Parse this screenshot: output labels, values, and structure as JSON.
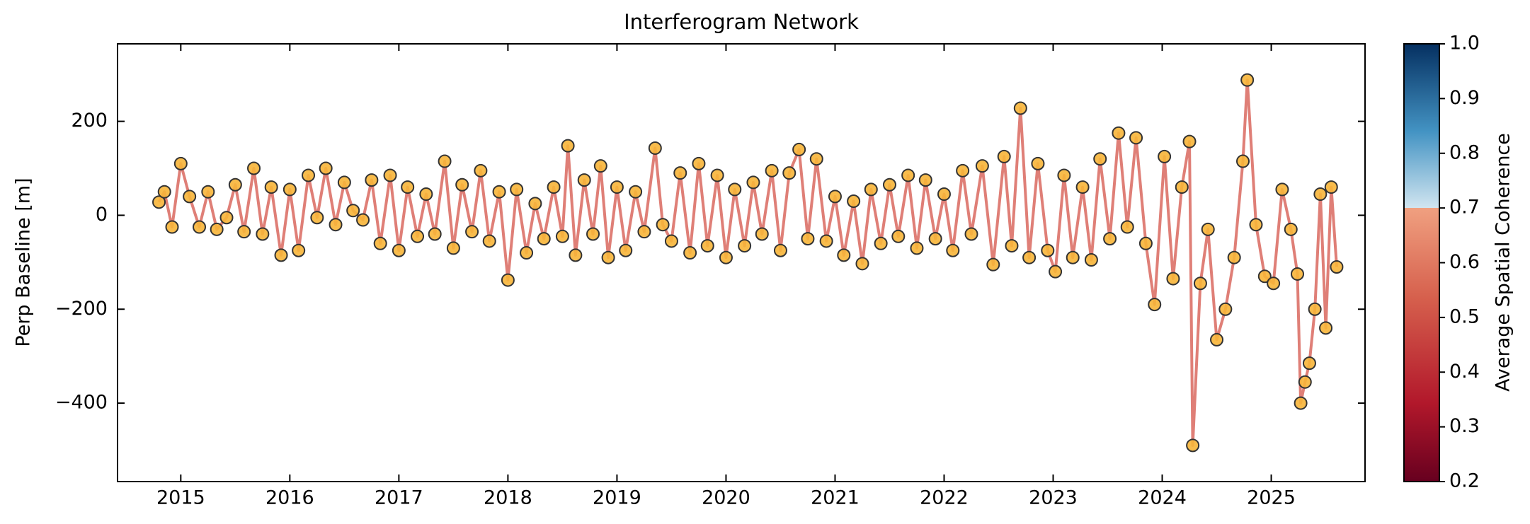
{
  "chart_data": {
    "type": "line",
    "title": "Interferogram Network",
    "y_label": "Perp Baseline [m]",
    "colorbar": {
      "label": "Average Spatial Coherence",
      "lim": [
        0.2,
        1.0
      ],
      "ticks": [
        0.2,
        0.3,
        0.4,
        0.5,
        0.6,
        0.7,
        0.8,
        0.9,
        {
          "value": 1,
          "label": "1.0"
        }
      ]
    },
    "xlim": [
      2014.42,
      2025.86
    ],
    "xticks": [
      2015,
      2016,
      2017,
      2018,
      2019,
      2020,
      2021,
      2022,
      2023,
      2024,
      2025
    ],
    "ylim": [
      -567,
      365
    ],
    "yticks": [
      {
        "value": -400,
        "label": "−400"
      },
      {
        "value": -200,
        "label": "−200"
      },
      0,
      200
    ],
    "line_color": "#d9695f",
    "marker_color": "#f7b538",
    "x": [
      2014.8,
      2014.85,
      2014.92,
      2015.0,
      2015.08,
      2015.17,
      2015.25,
      2015.33,
      2015.42,
      2015.5,
      2015.58,
      2015.67,
      2015.75,
      2015.83,
      2015.92,
      2016.0,
      2016.08,
      2016.17,
      2016.25,
      2016.33,
      2016.42,
      2016.5,
      2016.58,
      2016.67,
      2016.75,
      2016.83,
      2016.92,
      2017.0,
      2017.08,
      2017.17,
      2017.25,
      2017.33,
      2017.42,
      2017.5,
      2017.58,
      2017.67,
      2017.75,
      2017.83,
      2017.92,
      2018.0,
      2018.08,
      2018.17,
      2018.25,
      2018.33,
      2018.42,
      2018.5,
      2018.55,
      2018.62,
      2018.7,
      2018.78,
      2018.85,
      2018.92,
      2019.0,
      2019.08,
      2019.17,
      2019.25,
      2019.35,
      2019.42,
      2019.5,
      2019.58,
      2019.67,
      2019.75,
      2019.83,
      2019.92,
      2020.0,
      2020.08,
      2020.17,
      2020.25,
      2020.33,
      2020.42,
      2020.5,
      2020.58,
      2020.67,
      2020.75,
      2020.83,
      2020.92,
      2021.0,
      2021.08,
      2021.17,
      2021.25,
      2021.33,
      2021.42,
      2021.5,
      2021.58,
      2021.67,
      2021.75,
      2021.83,
      2021.92,
      2022.0,
      2022.08,
      2022.17,
      2022.25,
      2022.35,
      2022.45,
      2022.55,
      2022.62,
      2022.7,
      2022.78,
      2022.86,
      2022.95,
      2023.02,
      2023.1,
      2023.18,
      2023.27,
      2023.35,
      2023.43,
      2023.52,
      2023.6,
      2023.68,
      2023.76,
      2023.85,
      2023.93,
      2024.02,
      2024.1,
      2024.18,
      2024.25,
      2024.28,
      2024.35,
      2024.42,
      2024.5,
      2024.58,
      2024.66,
      2024.74,
      2024.78,
      2024.86,
      2024.94,
      2025.02,
      2025.1,
      2025.18,
      2025.24,
      2025.27,
      2025.31,
      2025.35,
      2025.4,
      2025.45,
      2025.5,
      2025.55,
      2025.6
    ],
    "values": [
      28,
      50,
      -25,
      110,
      40,
      -25,
      50,
      -30,
      -5,
      65,
      -35,
      100,
      -40,
      60,
      -85,
      55,
      -75,
      85,
      -5,
      100,
      -20,
      70,
      10,
      -10,
      75,
      -60,
      85,
      -75,
      60,
      -45,
      45,
      -40,
      115,
      -70,
      65,
      -35,
      95,
      -55,
      50,
      -138,
      55,
      -80,
      25,
      -50,
      60,
      -45,
      148,
      -85,
      75,
      -40,
      105,
      -90,
      60,
      -75,
      50,
      -35,
      143,
      -20,
      -55,
      90,
      -80,
      110,
      -65,
      85,
      -90,
      55,
      -65,
      70,
      -40,
      95,
      -75,
      90,
      140,
      -50,
      120,
      -55,
      40,
      -85,
      30,
      -103,
      55,
      -60,
      65,
      -45,
      85,
      -70,
      75,
      -50,
      45,
      -75,
      95,
      -40,
      105,
      -105,
      125,
      -65,
      228,
      -90,
      110,
      -75,
      -120,
      85,
      -90,
      60,
      -95,
      120,
      -50,
      175,
      -25,
      165,
      -60,
      -190,
      125,
      -135,
      60,
      157,
      -490,
      -145,
      -30,
      -265,
      -200,
      -90,
      115,
      288,
      -20,
      -130,
      -145,
      55,
      -30,
      -125,
      -400,
      -355,
      -315,
      -200,
      45,
      -240,
      60,
      -110
    ]
  }
}
